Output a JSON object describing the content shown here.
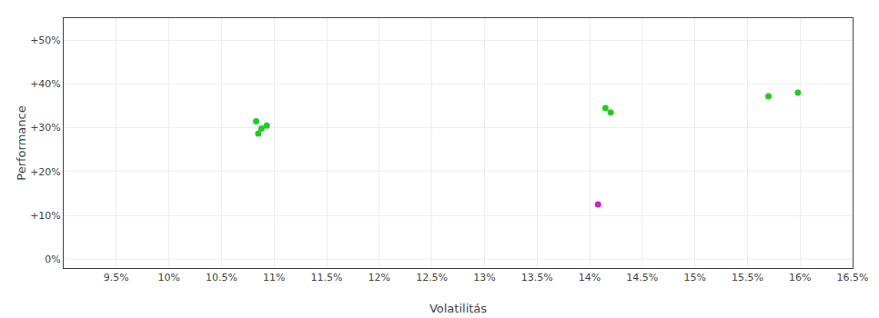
{
  "chart_data": {
    "type": "scatter",
    "xlabel": "Volatilitás",
    "ylabel": "Performance",
    "xlim": [
      0.09,
      0.165
    ],
    "ylim": [
      -0.02,
      0.55
    ],
    "xticks": [
      {
        "value": 0.095,
        "label": "9.5%"
      },
      {
        "value": 0.1,
        "label": "10%"
      },
      {
        "value": 0.105,
        "label": "10.5%"
      },
      {
        "value": 0.11,
        "label": "11%"
      },
      {
        "value": 0.115,
        "label": "11.5%"
      },
      {
        "value": 0.12,
        "label": "12%"
      },
      {
        "value": 0.125,
        "label": "12.5%"
      },
      {
        "value": 0.13,
        "label": "13%"
      },
      {
        "value": 0.135,
        "label": "13.5%"
      },
      {
        "value": 0.14,
        "label": "14%"
      },
      {
        "value": 0.145,
        "label": "14.5%"
      },
      {
        "value": 0.15,
        "label": "15%"
      },
      {
        "value": 0.155,
        "label": "15.5%"
      },
      {
        "value": 0.16,
        "label": "16%"
      },
      {
        "value": 0.165,
        "label": "16.5%"
      }
    ],
    "yticks": [
      {
        "value": 0.0,
        "label": "0%"
      },
      {
        "value": 0.1,
        "label": "+10%"
      },
      {
        "value": 0.2,
        "label": "+20%"
      },
      {
        "value": 0.3,
        "label": "+30%"
      },
      {
        "value": 0.4,
        "label": "+40%"
      },
      {
        "value": 0.5,
        "label": "+50%"
      }
    ],
    "grid": true,
    "series": [
      {
        "color": "#22cc22",
        "x": [
          0.1083,
          0.1093,
          0.1088,
          0.1085,
          0.1415,
          0.142,
          0.157,
          0.1598
        ],
        "values": [
          0.315,
          0.305,
          0.298,
          0.287,
          0.345,
          0.335,
          0.372,
          0.38
        ]
      },
      {
        "color": "#cc22cc",
        "x": [
          0.1408
        ],
        "values": [
          0.125
        ]
      }
    ]
  }
}
